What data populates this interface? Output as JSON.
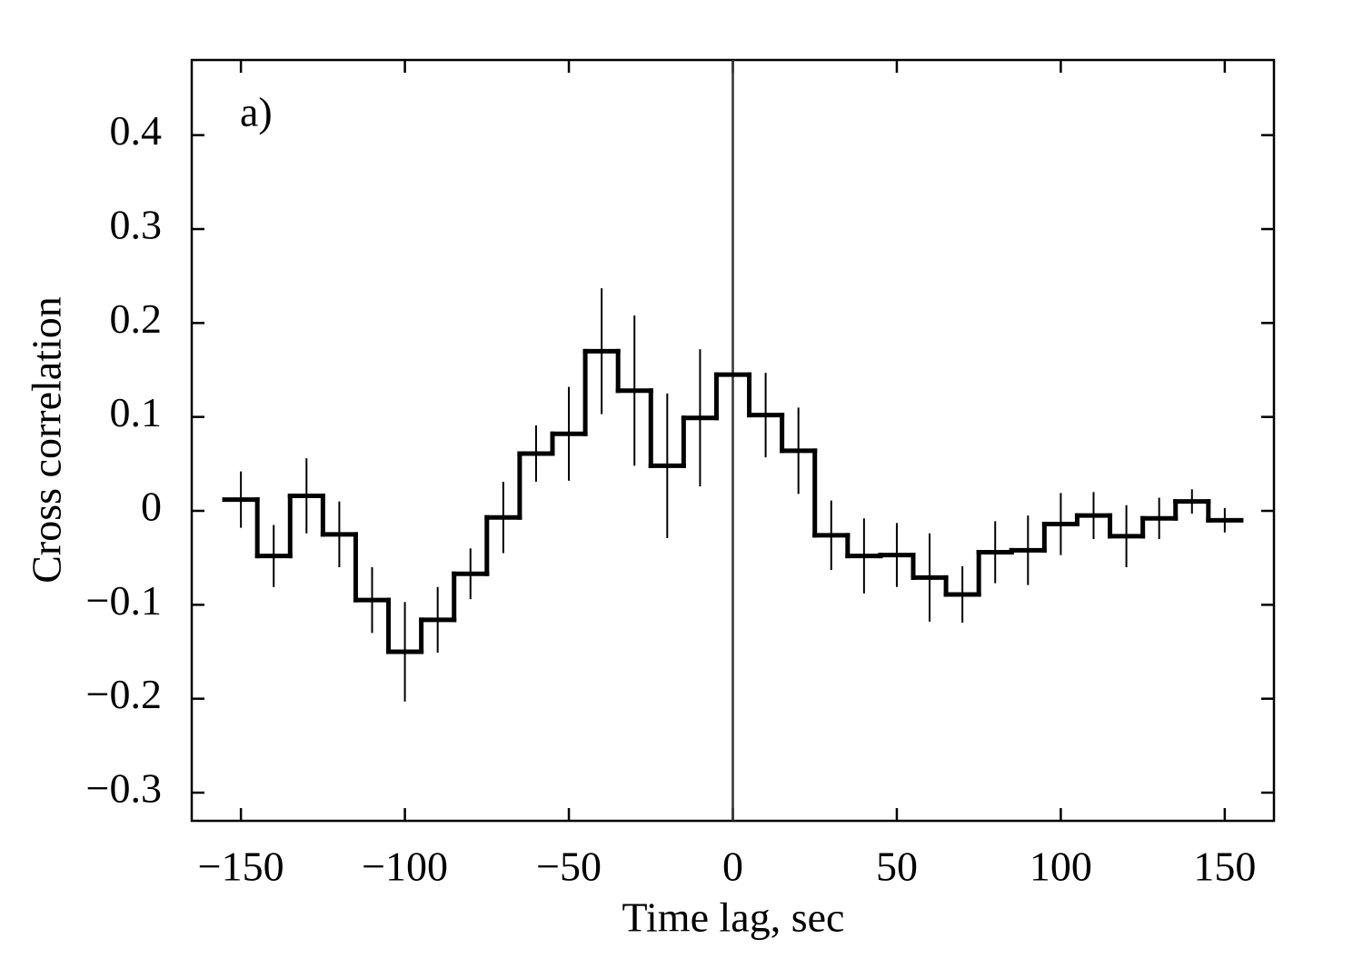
{
  "chart_data": {
    "type": "step",
    "annotation": "a)",
    "xlabel": "Time lag, sec",
    "ylabel": "Cross correlation",
    "color": "#000000",
    "x": [
      -150,
      -140,
      -130,
      -120,
      -110,
      -100,
      -90,
      -80,
      -70,
      -60,
      -50,
      -40,
      -30,
      -20,
      -10,
      0,
      10,
      20,
      30,
      40,
      50,
      60,
      70,
      80,
      90,
      100,
      110,
      120,
      130,
      140,
      150
    ],
    "bin_width": 10,
    "values": [
      0.012,
      -0.048,
      0.016,
      -0.025,
      -0.095,
      -0.15,
      -0.116,
      -0.067,
      -0.007,
      0.061,
      0.082,
      0.17,
      0.128,
      0.048,
      0.099,
      0.145,
      0.102,
      0.064,
      -0.026,
      -0.048,
      -0.047,
      -0.071,
      -0.089,
      -0.044,
      -0.042,
      -0.014,
      -0.005,
      -0.027,
      -0.008,
      0.01,
      -0.01
    ],
    "errors": [
      0.03,
      0.033,
      0.04,
      0.035,
      0.035,
      0.053,
      0.035,
      0.027,
      0.038,
      0.03,
      0.05,
      0.067,
      0.08,
      0.077,
      0.073,
      null,
      0.045,
      0.046,
      0.037,
      0.04,
      0.034,
      0.047,
      0.03,
      0.033,
      0.037,
      0.033,
      0.025,
      0.033,
      0.022,
      0.013,
      0.013
    ],
    "vline": 0,
    "xlim": [
      -165,
      165
    ],
    "ylim": [
      -0.33,
      0.48
    ],
    "xticks": [
      {
        "value": -150,
        "label": "−150"
      },
      {
        "value": -100,
        "label": "−100"
      },
      {
        "value": -50,
        "label": "−50"
      },
      0,
      50,
      100,
      150
    ],
    "yticks": [
      {
        "value": -0.3,
        "label": "−0.3"
      },
      {
        "value": -0.2,
        "label": "−0.2"
      },
      {
        "value": -0.1,
        "label": "−0.1"
      },
      0,
      0.1,
      0.2,
      0.3,
      0.4
    ]
  }
}
